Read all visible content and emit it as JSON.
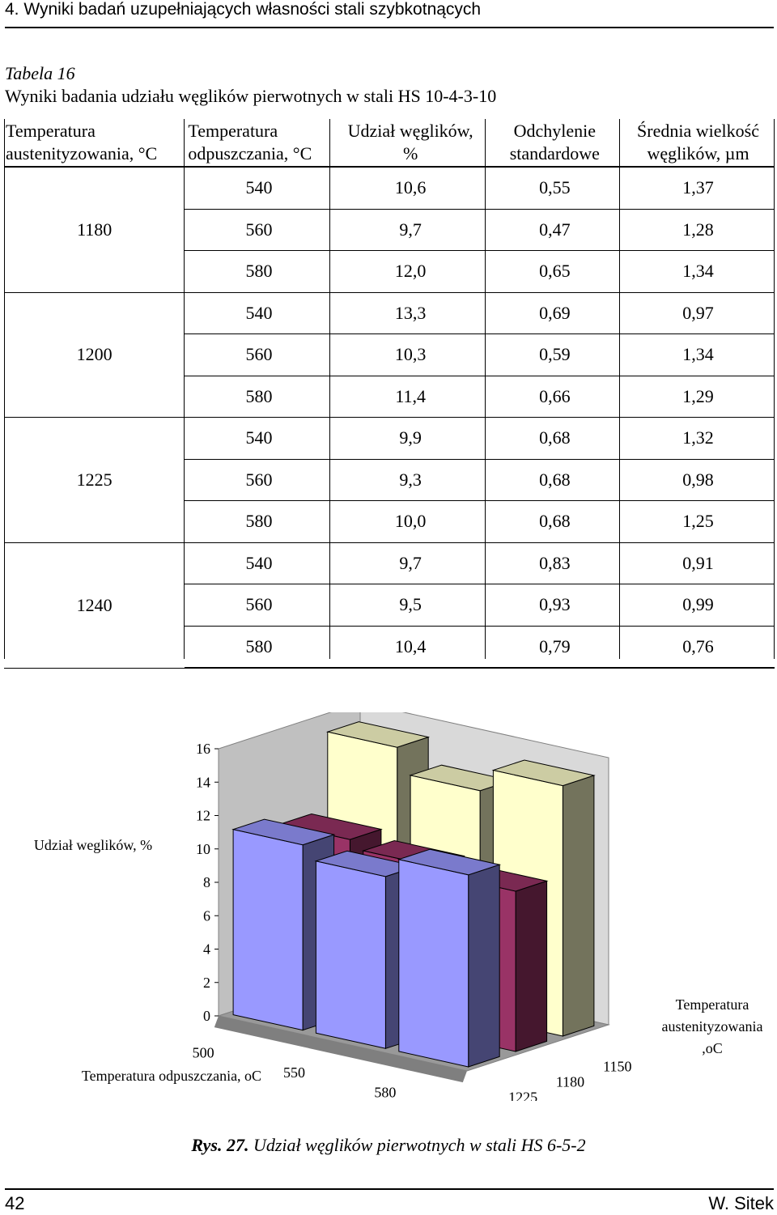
{
  "header": {
    "running_title": "4. Wyniki badań uzupełniających własności stali szybkotnących"
  },
  "table": {
    "label": "Tabela 16",
    "caption": "Wyniki badania udziału węglików pierwotnych w stali HS 10-4-3-10",
    "columns": [
      [
        "Temperatura",
        "austenityzowania, °C"
      ],
      [
        "Temperatura",
        "odpuszczania, °C"
      ],
      [
        "Udział węglików,",
        "%"
      ],
      [
        "Odchylenie",
        "standardowe"
      ],
      [
        "Średnia wielkość",
        "węglików, µm"
      ]
    ],
    "groups": [
      {
        "temp": "1180",
        "rows": [
          [
            "540",
            "10,6",
            "0,55",
            "1,37"
          ],
          [
            "560",
            "9,7",
            "0,47",
            "1,28"
          ],
          [
            "580",
            "12,0",
            "0,65",
            "1,34"
          ]
        ]
      },
      {
        "temp": "1200",
        "rows": [
          [
            "540",
            "13,3",
            "0,69",
            "0,97"
          ],
          [
            "560",
            "10,3",
            "0,59",
            "1,34"
          ],
          [
            "580",
            "11,4",
            "0,66",
            "1,29"
          ]
        ]
      },
      {
        "temp": "1225",
        "rows": [
          [
            "540",
            "9,9",
            "0,68",
            "1,32"
          ],
          [
            "560",
            "9,3",
            "0,68",
            "0,98"
          ],
          [
            "580",
            "10,0",
            "0,68",
            "1,25"
          ]
        ]
      },
      {
        "temp": "1240",
        "rows": [
          [
            "540",
            "9,7",
            "0,83",
            "0,91"
          ],
          [
            "560",
            "9,5",
            "0,93",
            "0,99"
          ],
          [
            "580",
            "10,4",
            "0,79",
            "0,76"
          ]
        ]
      }
    ]
  },
  "chart_data": {
    "type": "bar",
    "ylabel": "Udział weglików, %",
    "xlabel": "Temperatura odpuszczania, oC",
    "zlabel": [
      "Temperatura",
      "austenityzowania",
      ",oC"
    ],
    "yticks": [
      "0",
      "2",
      "4",
      "6",
      "8",
      "10",
      "12",
      "14",
      "16"
    ],
    "ylim": [
      0,
      16
    ],
    "categories": [
      "500",
      "550",
      "580"
    ],
    "depth_categories": [
      "1225",
      "1180",
      "1150"
    ],
    "series": [
      {
        "name": "1225",
        "color": "#9999ff",
        "values": [
          11.1,
          10.3,
          11.5
        ]
      },
      {
        "name": "1180",
        "color": "#993366",
        "values": [
          10.5,
          10.0,
          9.6
        ]
      },
      {
        "name": "1150",
        "color": "#ffffcc",
        "values": [
          15.1,
          13.6,
          15.0
        ]
      }
    ]
  },
  "figure": {
    "label": "Rys. 27.",
    "caption": "Udział węglików pierwotnych w stali HS 6-5-2"
  },
  "footer": {
    "page": "42",
    "author": "W. Sitek"
  }
}
